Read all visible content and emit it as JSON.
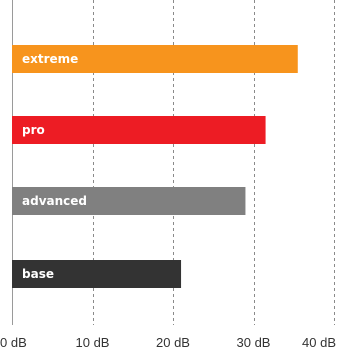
{
  "chart_data": {
    "type": "bar",
    "orientation": "horizontal",
    "categories": [
      "extreme",
      "pro",
      "advanced",
      "base"
    ],
    "values": [
      35.5,
      31.5,
      29,
      21
    ],
    "unit": "dB",
    "xlim": [
      0,
      40
    ],
    "ticks": [
      0,
      10,
      20,
      30,
      40
    ],
    "tick_labels": [
      "0 dB",
      "10 dB",
      "20 dB",
      "30 dB",
      "40 dB"
    ],
    "grid": "vertical dashed",
    "colors": [
      "#f7941d",
      "#ed1c24",
      "#808080",
      "#333333"
    ],
    "title": "",
    "xlabel": "",
    "ylabel": ""
  }
}
